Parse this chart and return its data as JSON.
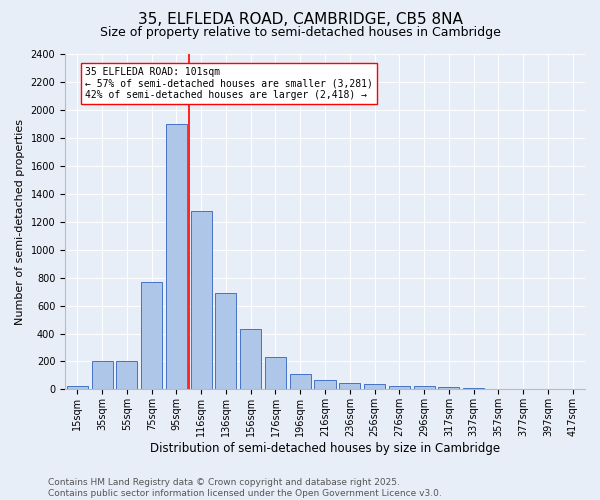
{
  "title": "35, ELFLEDA ROAD, CAMBRIDGE, CB5 8NA",
  "subtitle": "Size of property relative to semi-detached houses in Cambridge",
  "xlabel": "Distribution of semi-detached houses by size in Cambridge",
  "ylabel": "Number of semi-detached properties",
  "categories": [
    "15sqm",
    "35sqm",
    "55sqm",
    "75sqm",
    "95sqm",
    "116sqm",
    "136sqm",
    "156sqm",
    "176sqm",
    "196sqm",
    "216sqm",
    "236sqm",
    "256sqm",
    "276sqm",
    "296sqm",
    "317sqm",
    "337sqm",
    "357sqm",
    "377sqm",
    "397sqm",
    "417sqm"
  ],
  "values": [
    25,
    200,
    205,
    770,
    1900,
    1275,
    690,
    435,
    230,
    110,
    65,
    45,
    40,
    25,
    22,
    20,
    10,
    0,
    0,
    0,
    0
  ],
  "bar_color": "#aec6e8",
  "bar_edge_color": "#4472c4",
  "vline_x": 4.5,
  "vline_color": "red",
  "annotation_title": "35 ELFLEDA ROAD: 101sqm",
  "annotation_line1": "← 57% of semi-detached houses are smaller (3,281)",
  "annotation_line2": "42% of semi-detached houses are larger (2,418) →",
  "annotation_box_color": "white",
  "annotation_box_edge_color": "red",
  "ylim": [
    0,
    2400
  ],
  "yticks": [
    0,
    200,
    400,
    600,
    800,
    1000,
    1200,
    1400,
    1600,
    1800,
    2000,
    2200,
    2400
  ],
  "background_color": "#e8eef7",
  "plot_bg_color": "#e8eef7",
  "footer_line1": "Contains HM Land Registry data © Crown copyright and database right 2025.",
  "footer_line2": "Contains public sector information licensed under the Open Government Licence v3.0.",
  "title_fontsize": 11,
  "subtitle_fontsize": 9,
  "xlabel_fontsize": 8.5,
  "ylabel_fontsize": 8,
  "tick_fontsize": 7,
  "annotation_fontsize": 7,
  "footer_fontsize": 6.5
}
